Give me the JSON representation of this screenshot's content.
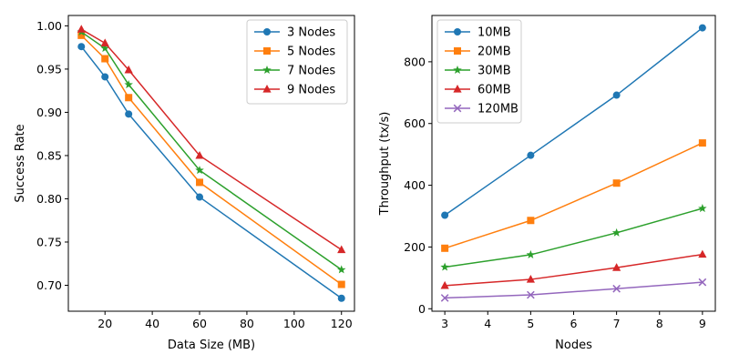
{
  "chart_data": [
    {
      "type": "line",
      "xlabel": "Data Size (MB)",
      "ylabel": "Success Rate",
      "xlim": [
        4.5,
        125.5
      ],
      "ylim": [
        0.67,
        1.012
      ],
      "xticks": [
        20,
        40,
        60,
        80,
        100,
        120
      ],
      "yticks": [
        0.7,
        0.75,
        0.8,
        0.85,
        0.9,
        0.95,
        1.0
      ],
      "ytick_decimals": 2,
      "grid": false,
      "legend_position": "top-right",
      "x": [
        10,
        20,
        30,
        60,
        120
      ],
      "series": [
        {
          "name": "3 Nodes",
          "color": "#1f77b4",
          "marker": "circle",
          "values": [
            0.976,
            0.941,
            0.898,
            0.802,
            0.685
          ]
        },
        {
          "name": "5 Nodes",
          "color": "#ff7f0e",
          "marker": "square",
          "values": [
            0.989,
            0.962,
            0.917,
            0.819,
            0.701
          ]
        },
        {
          "name": "7 Nodes",
          "color": "#2ca02c",
          "marker": "star",
          "values": [
            0.993,
            0.974,
            0.932,
            0.833,
            0.718
          ]
        },
        {
          "name": "9 Nodes",
          "color": "#d62728",
          "marker": "triangle",
          "values": [
            0.996,
            0.98,
            0.949,
            0.85,
            0.741
          ]
        }
      ]
    },
    {
      "type": "line",
      "xlabel": "Nodes",
      "ylabel": "Throughput (tx/s)",
      "xlim": [
        2.7,
        9.3
      ],
      "ylim": [
        -8,
        950
      ],
      "xticks": [
        3,
        4,
        5,
        6,
        7,
        8,
        9
      ],
      "yticks": [
        0,
        200,
        400,
        600,
        800
      ],
      "ytick_decimals": 0,
      "grid": false,
      "legend_position": "top-left",
      "x": [
        3,
        5,
        7,
        9
      ],
      "series": [
        {
          "name": "10MB",
          "color": "#1f77b4",
          "marker": "circle",
          "values": [
            303,
            497,
            692,
            910
          ]
        },
        {
          "name": "20MB",
          "color": "#ff7f0e",
          "marker": "square",
          "values": [
            196,
            286,
            407,
            537
          ]
        },
        {
          "name": "30MB",
          "color": "#2ca02c",
          "marker": "star",
          "values": [
            135,
            175,
            246,
            325
          ]
        },
        {
          "name": "60MB",
          "color": "#d62728",
          "marker": "triangle",
          "values": [
            75,
            95,
            133,
            176
          ]
        },
        {
          "name": "120MB",
          "color": "#9467bd",
          "marker": "x",
          "values": [
            35,
            45,
            65,
            86
          ]
        }
      ]
    }
  ]
}
